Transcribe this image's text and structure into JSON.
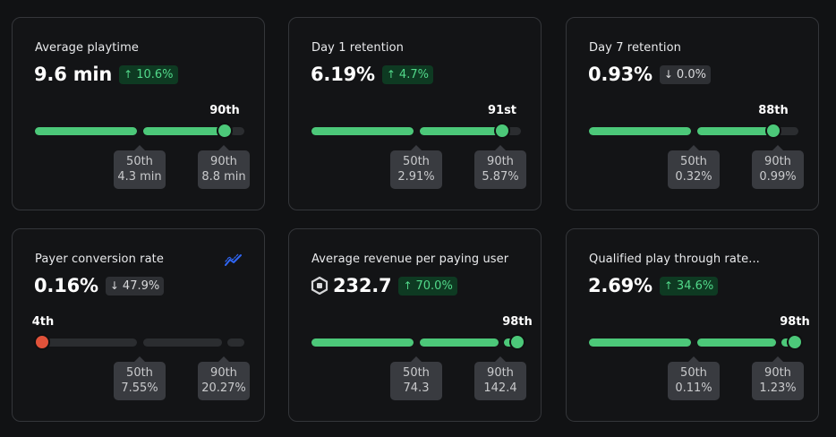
{
  "cards": [
    {
      "title": "Average playtime",
      "value": "9.6 min",
      "change": {
        "direction": "up",
        "arrow": "↑",
        "text": "10.6%"
      },
      "rank_label": "90th",
      "percentile_value": 90,
      "p50": {
        "label": "50th",
        "value": "4.3 min"
      },
      "p90": {
        "label": "90th",
        "value": "8.8 min"
      }
    },
    {
      "title": "Day 1 retention",
      "value": "6.19%",
      "change": {
        "direction": "up",
        "arrow": "↑",
        "text": "4.7%"
      },
      "rank_label": "91st",
      "percentile_value": 91,
      "p50": {
        "label": "50th",
        "value": "2.91%"
      },
      "p90": {
        "label": "90th",
        "value": "5.87%"
      }
    },
    {
      "title": "Day 7 retention",
      "value": "0.93%",
      "change": {
        "direction": "down",
        "arrow": "↓",
        "text": "0.0%"
      },
      "rank_label": "88th",
      "percentile_value": 88,
      "p50": {
        "label": "50th",
        "value": "0.32%"
      },
      "p90": {
        "label": "90th",
        "value": "0.99%"
      }
    },
    {
      "title": "Payer conversion rate",
      "value": "0.16%",
      "change": {
        "direction": "down",
        "arrow": "↓",
        "text": "47.9%"
      },
      "rank_label": "4th",
      "percentile_value": 4,
      "p50": {
        "label": "50th",
        "value": "7.55%"
      },
      "p90": {
        "label": "90th",
        "value": "20.27%"
      },
      "icon": "trend-chart-icon"
    },
    {
      "title": "Average revenue per paying user",
      "value": "232.7",
      "value_icon": "robux-icon",
      "change": {
        "direction": "up",
        "arrow": "↑",
        "text": "70.0%"
      },
      "rank_label": "98th",
      "percentile_value": 98,
      "p50": {
        "label": "50th",
        "value": "74.3"
      },
      "p90": {
        "label": "90th",
        "value": "142.4"
      }
    },
    {
      "title": "Qualified play through rate...",
      "value": "2.69%",
      "change": {
        "direction": "up",
        "arrow": "↑",
        "text": "34.6%"
      },
      "rank_label": "98th",
      "percentile_value": 98,
      "p50": {
        "label": "50th",
        "value": "0.11%"
      },
      "p90": {
        "label": "90th",
        "value": "1.23%"
      }
    }
  ],
  "colors": {
    "background": "#111214",
    "card_border": "#34363a",
    "good": "#4cc879",
    "bad": "#e0523a",
    "up_badge_bg": "#0e3a22",
    "up_badge_text": "#52d98a",
    "neutral_badge_bg": "#2e3034",
    "tooltip_bg": "#393b40",
    "trend_icon": "#2f66f5"
  }
}
